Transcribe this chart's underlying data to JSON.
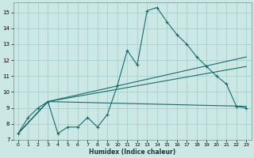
{
  "xlabel": "Humidex (Indice chaleur)",
  "bg_color": "#cce8e4",
  "line_color": "#1a6b6b",
  "grid_color": "#aacfcb",
  "xlim": [
    -0.5,
    23.5
  ],
  "ylim": [
    7.0,
    15.6
  ],
  "xticks": [
    0,
    1,
    2,
    3,
    4,
    5,
    6,
    7,
    8,
    9,
    10,
    11,
    12,
    13,
    14,
    15,
    16,
    17,
    18,
    19,
    20,
    21,
    22,
    23
  ],
  "yticks": [
    7,
    8,
    9,
    10,
    11,
    12,
    13,
    14,
    15
  ],
  "line1_x": [
    0,
    1,
    2,
    3,
    4,
    5,
    6,
    7,
    8,
    9,
    10,
    11,
    12,
    13,
    14,
    15,
    16,
    17,
    18,
    19,
    20,
    21,
    22,
    23
  ],
  "line1_y": [
    7.4,
    8.4,
    9.0,
    9.4,
    7.4,
    7.8,
    7.8,
    8.4,
    7.8,
    8.6,
    10.4,
    12.6,
    11.7,
    15.1,
    15.3,
    14.4,
    13.6,
    13.0,
    12.2,
    11.6,
    11.0,
    10.5,
    9.1,
    9.0
  ],
  "line2_x": [
    0,
    3,
    23
  ],
  "line2_y": [
    7.4,
    9.4,
    9.1
  ],
  "line3_x": [
    0,
    3,
    23
  ],
  "line3_y": [
    7.4,
    9.4,
    11.6
  ],
  "line4_x": [
    0,
    3,
    23
  ],
  "line4_y": [
    7.4,
    9.4,
    12.2
  ]
}
